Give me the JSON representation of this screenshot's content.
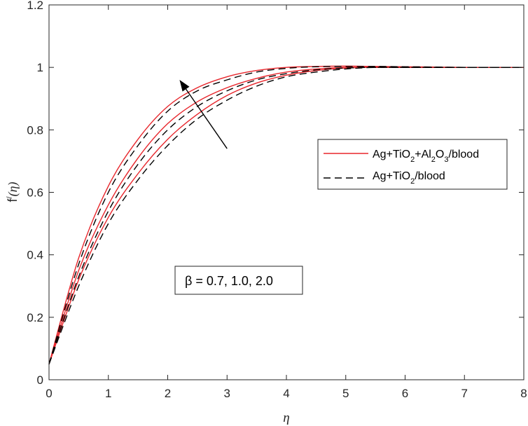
{
  "chart_data": {
    "type": "line",
    "xlabel": "η",
    "ylabel_main": "f",
    "ylabel_prime": "/",
    "ylabel_arg": "(η)",
    "xlim": [
      0,
      8
    ],
    "ylim": [
      0,
      1.2
    ],
    "x_ticks": [
      0,
      1,
      2,
      3,
      4,
      5,
      6,
      7,
      8
    ],
    "x_tick_labels": [
      "0",
      "1",
      "2",
      "3",
      "4",
      "5",
      "6",
      "7",
      "8"
    ],
    "y_ticks": [
      0,
      0.2,
      0.4,
      0.6,
      0.8,
      1.0,
      1.2
    ],
    "y_tick_labels": [
      "0",
      "0.2",
      "0.4",
      "0.6",
      "0.8",
      "1",
      "1.2"
    ],
    "grid": false,
    "legend_position": "right",
    "legend": [
      {
        "label_parts": [
          "Ag+TiO",
          "2",
          "+Al",
          "2",
          "O",
          "3",
          "/blood"
        ],
        "style": "solid",
        "color": "#e8262c"
      },
      {
        "label_parts": [
          "Ag+TiO",
          "2",
          "/blood"
        ],
        "style": "dashed",
        "color": "#000000"
      }
    ],
    "annotation": {
      "text": "β = 0.7, 1.0, 2.0"
    },
    "arrow": {
      "from": [
        3.0,
        0.74
      ],
      "to": [
        2.2,
        0.96
      ]
    },
    "series": [
      {
        "beta": 0.7,
        "fluid": "Ag+TiO2+Al2O3/blood",
        "style": "solid",
        "color": "#e8262c",
        "x": [
          0,
          0.5,
          1,
          1.5,
          2,
          2.5,
          3,
          3.5,
          4,
          4.5,
          5,
          5.5,
          6,
          6.5,
          7,
          7.5,
          8
        ],
        "y": [
          0.05,
          0.32,
          0.52,
          0.66,
          0.77,
          0.85,
          0.91,
          0.95,
          0.975,
          0.99,
          0.998,
          1.0,
          1.0,
          1.0,
          1.0,
          1.0,
          1.0
        ]
      },
      {
        "beta": 1.0,
        "fluid": "Ag+TiO2+Al2O3/blood",
        "style": "solid",
        "color": "#e8262c",
        "x": [
          0,
          0.5,
          1,
          1.5,
          2,
          2.5,
          3,
          3.5,
          4,
          4.5,
          5,
          5.5,
          6,
          6.5,
          7,
          7.5,
          8
        ],
        "y": [
          0.05,
          0.35,
          0.56,
          0.71,
          0.82,
          0.89,
          0.935,
          0.965,
          0.985,
          0.995,
          1.0,
          1.0,
          1.0,
          1.0,
          1.0,
          1.0,
          1.0
        ]
      },
      {
        "beta": 2.0,
        "fluid": "Ag+TiO2+Al2O3/blood",
        "style": "solid",
        "color": "#e8262c",
        "x": [
          0,
          0.5,
          1,
          1.5,
          2,
          2.5,
          3,
          3.5,
          4,
          4.5,
          5,
          5.5,
          6,
          6.5,
          7,
          7.5,
          8
        ],
        "y": [
          0.05,
          0.39,
          0.62,
          0.77,
          0.875,
          0.935,
          0.97,
          0.99,
          1.0,
          1.003,
          1.004,
          1.003,
          1.002,
          1.001,
          1.0,
          1.0,
          1.0
        ]
      },
      {
        "beta": 0.7,
        "fluid": "Ag+TiO2/blood",
        "style": "dashed",
        "color": "#000000",
        "x": [
          0,
          0.5,
          1,
          1.5,
          2,
          2.5,
          3,
          3.5,
          4,
          4.5,
          5,
          5.5,
          6,
          6.5,
          7,
          7.5,
          8
        ],
        "y": [
          0.05,
          0.3,
          0.5,
          0.64,
          0.75,
          0.835,
          0.895,
          0.94,
          0.97,
          0.985,
          0.995,
          1.0,
          1.0,
          1.0,
          1.0,
          1.0,
          1.0
        ]
      },
      {
        "beta": 1.0,
        "fluid": "Ag+TiO2/blood",
        "style": "dashed",
        "color": "#000000",
        "x": [
          0,
          0.5,
          1,
          1.5,
          2,
          2.5,
          3,
          3.5,
          4,
          4.5,
          5,
          5.5,
          6,
          6.5,
          7,
          7.5,
          8
        ],
        "y": [
          0.05,
          0.33,
          0.54,
          0.69,
          0.8,
          0.875,
          0.925,
          0.96,
          0.98,
          0.992,
          0.998,
          1.0,
          1.0,
          1.0,
          1.0,
          1.0,
          1.0
        ]
      },
      {
        "beta": 2.0,
        "fluid": "Ag+TiO2/blood",
        "style": "dashed",
        "color": "#000000",
        "x": [
          0,
          0.5,
          1,
          1.5,
          2,
          2.5,
          3,
          3.5,
          4,
          4.5,
          5,
          5.5,
          6,
          6.5,
          7,
          7.5,
          8
        ],
        "y": [
          0.05,
          0.37,
          0.6,
          0.75,
          0.86,
          0.925,
          0.96,
          0.985,
          0.997,
          1.002,
          1.003,
          1.003,
          1.002,
          1.001,
          1.0,
          1.0,
          1.0
        ]
      }
    ]
  }
}
